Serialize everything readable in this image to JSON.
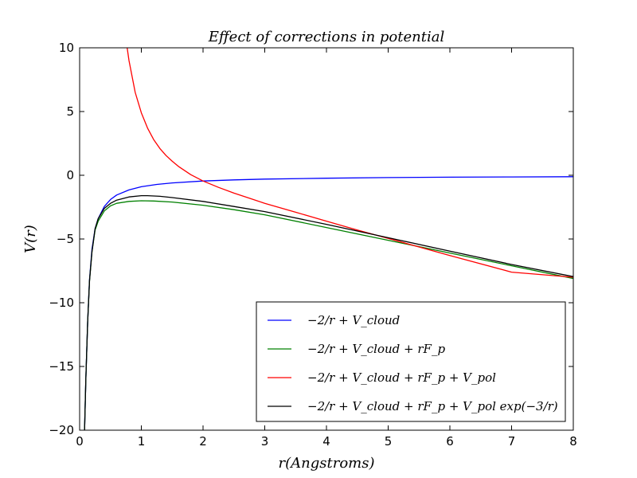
{
  "chart_data": {
    "type": "line",
    "title": "Effect of corrections in potential",
    "xlabel": "r(Angstroms)",
    "ylabel": "V(r)",
    "xlim": [
      0,
      8
    ],
    "ylim": [
      -20,
      10
    ],
    "x_ticks": [
      0,
      1,
      2,
      3,
      4,
      5,
      6,
      7,
      8
    ],
    "y_ticks": [
      10,
      5,
      0,
      -5,
      -10,
      -15,
      -20
    ],
    "x_tick_labels": [
      "0",
      "1",
      "2",
      "3",
      "4",
      "5",
      "6",
      "7",
      "8"
    ],
    "y_tick_labels": [
      "10",
      "5",
      "0",
      "−5",
      "−10",
      "−15",
      "−20"
    ],
    "grid": false,
    "legend_position": "lower-right",
    "series": [
      {
        "name": "−2/r + V_cloud",
        "color": "#0000ff",
        "points": [
          [
            0.08,
            -20
          ],
          [
            0.1,
            -16
          ],
          [
            0.13,
            -11.5
          ],
          [
            0.16,
            -8.2
          ],
          [
            0.2,
            -5.8
          ],
          [
            0.25,
            -4.2
          ],
          [
            0.3,
            -3.4
          ],
          [
            0.4,
            -2.45
          ],
          [
            0.5,
            -1.9
          ],
          [
            0.6,
            -1.55
          ],
          [
            0.8,
            -1.15
          ],
          [
            1.0,
            -0.9
          ],
          [
            1.25,
            -0.72
          ],
          [
            1.5,
            -0.6
          ],
          [
            2.0,
            -0.45
          ],
          [
            2.5,
            -0.36
          ],
          [
            3.0,
            -0.3
          ],
          [
            4.0,
            -0.23
          ],
          [
            5.0,
            -0.18
          ],
          [
            6.0,
            -0.15
          ],
          [
            7.0,
            -0.13
          ],
          [
            8.0,
            -0.11
          ]
        ]
      },
      {
        "name": "−2/r + V_cloud + rF_p",
        "color": "#008000",
        "points": [
          [
            0.08,
            -20
          ],
          [
            0.1,
            -16
          ],
          [
            0.13,
            -11.5
          ],
          [
            0.16,
            -8.3
          ],
          [
            0.2,
            -6.0
          ],
          [
            0.25,
            -4.3
          ],
          [
            0.3,
            -3.6
          ],
          [
            0.4,
            -2.8
          ],
          [
            0.5,
            -2.4
          ],
          [
            0.6,
            -2.2
          ],
          [
            0.8,
            -2.05
          ],
          [
            1.0,
            -2.0
          ],
          [
            1.2,
            -2.02
          ],
          [
            1.5,
            -2.1
          ],
          [
            2.0,
            -2.35
          ],
          [
            2.5,
            -2.7
          ],
          [
            3.0,
            -3.1
          ],
          [
            4.0,
            -4.1
          ],
          [
            5.0,
            -5.1
          ],
          [
            6.0,
            -6.1
          ],
          [
            7.0,
            -7.1
          ],
          [
            8.0,
            -8.1
          ]
        ]
      },
      {
        "name": "−2/r + V_cloud + rF_p + V_pol",
        "color": "#ff0000",
        "points": [
          [
            0.77,
            10
          ],
          [
            0.8,
            9.0
          ],
          [
            0.9,
            6.5
          ],
          [
            1.0,
            4.9
          ],
          [
            1.1,
            3.7
          ],
          [
            1.2,
            2.8
          ],
          [
            1.3,
            2.1
          ],
          [
            1.4,
            1.55
          ],
          [
            1.5,
            1.1
          ],
          [
            1.6,
            0.7
          ],
          [
            1.8,
            0.05
          ],
          [
            2.0,
            -0.45
          ],
          [
            2.25,
            -0.95
          ],
          [
            2.5,
            -1.4
          ],
          [
            2.75,
            -1.8
          ],
          [
            3.0,
            -2.2
          ],
          [
            3.5,
            -2.9
          ],
          [
            4.0,
            -3.6
          ],
          [
            4.5,
            -4.3
          ],
          [
            5.0,
            -4.95
          ],
          [
            6.0,
            -6.3
          ],
          [
            7.0,
            -7.6
          ],
          [
            8.0,
            -8.0
          ]
        ]
      },
      {
        "name": "−2/r + V_cloud + rF_p + V_pol exp(−3/r)",
        "color": "#000000",
        "points": [
          [
            0.08,
            -20
          ],
          [
            0.1,
            -16
          ],
          [
            0.13,
            -11.5
          ],
          [
            0.16,
            -8.3
          ],
          [
            0.2,
            -6.0
          ],
          [
            0.25,
            -4.2
          ],
          [
            0.3,
            -3.4
          ],
          [
            0.4,
            -2.6
          ],
          [
            0.5,
            -2.2
          ],
          [
            0.6,
            -1.95
          ],
          [
            0.8,
            -1.7
          ],
          [
            1.0,
            -1.6
          ],
          [
            1.1,
            -1.6
          ],
          [
            1.3,
            -1.65
          ],
          [
            1.5,
            -1.75
          ],
          [
            2.0,
            -2.05
          ],
          [
            2.5,
            -2.45
          ],
          [
            3.0,
            -2.85
          ],
          [
            4.0,
            -3.85
          ],
          [
            5.0,
            -4.9
          ],
          [
            6.0,
            -5.95
          ],
          [
            7.0,
            -7.0
          ],
          [
            8.0,
            -7.95
          ]
        ]
      }
    ]
  }
}
